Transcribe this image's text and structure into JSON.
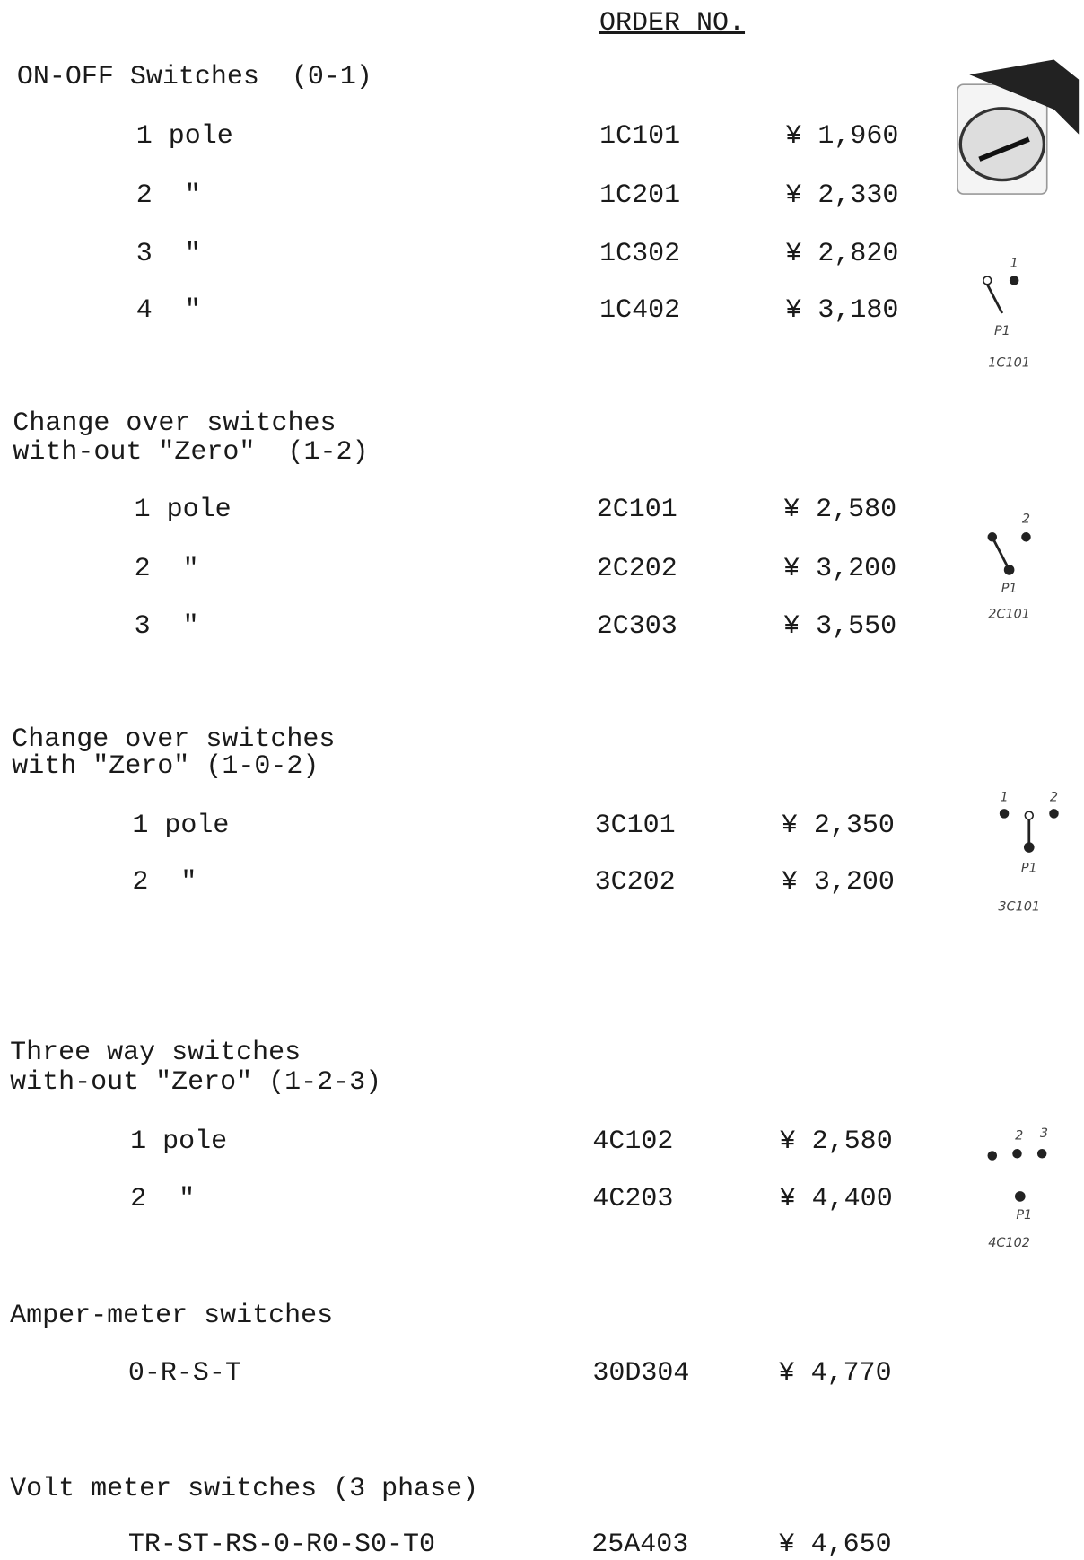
{
  "header": {
    "order_no": "ORDER NO."
  },
  "sections": [
    {
      "title": [
        "ON-OFF Switches  (0-1)"
      ],
      "rows": [
        [
          "1 pole",
          "1C101",
          "¥ 1,960"
        ],
        [
          "2  \"",
          "1C201",
          "¥ 2,330"
        ],
        [
          "3  \"",
          "1C302",
          "¥ 2,820"
        ],
        [
          "4  \"",
          "1C402",
          "¥ 3,180"
        ]
      ]
    },
    {
      "title": [
        "Change over switches",
        "with-out \"Zero\"  (1-2)"
      ],
      "rows": [
        [
          "1 pole",
          "2C101",
          "¥ 2,580"
        ],
        [
          "2  \"",
          "2C202",
          "¥ 3,200"
        ],
        [
          "3  \"",
          "2C303",
          "¥ 3,550"
        ]
      ]
    },
    {
      "title": [
        "Change over switches",
        "with \"Zero\" (1-0-2)"
      ],
      "rows": [
        [
          "1 pole",
          "3C101",
          "¥ 2,350"
        ],
        [
          "2  \"",
          "3C202",
          "¥ 3,200"
        ]
      ]
    },
    {
      "title": [
        "Three way switches",
        "with-out \"Zero\" (1-2-3)"
      ],
      "rows": [
        [
          "1 pole",
          "4C102",
          "¥ 2,580"
        ],
        [
          "2  \"",
          "4C203",
          "¥ 4,400"
        ]
      ]
    },
    {
      "title": [
        "Amper-meter switches"
      ],
      "rows": [
        [
          "0-R-S-T",
          "30D304",
          "¥ 4,770"
        ]
      ]
    },
    {
      "title": [
        "Volt meter switches (3 phase)"
      ],
      "rows": [
        [
          "TR-ST-RS-0-R0-S0-T0",
          "25A403",
          "¥ 4,650"
        ]
      ]
    }
  ],
  "diagrams": [
    {
      "points": [
        "1"
      ],
      "pole": "P1",
      "caption": "1C101"
    },
    {
      "points": [
        "2"
      ],
      "pole": "P1",
      "caption": "2C101"
    },
    {
      "points": [
        "1",
        "2"
      ],
      "pole": "P1",
      "caption": "3C101"
    },
    {
      "points": [
        "2",
        "3"
      ],
      "pole": "P1",
      "caption": "4C102"
    }
  ]
}
